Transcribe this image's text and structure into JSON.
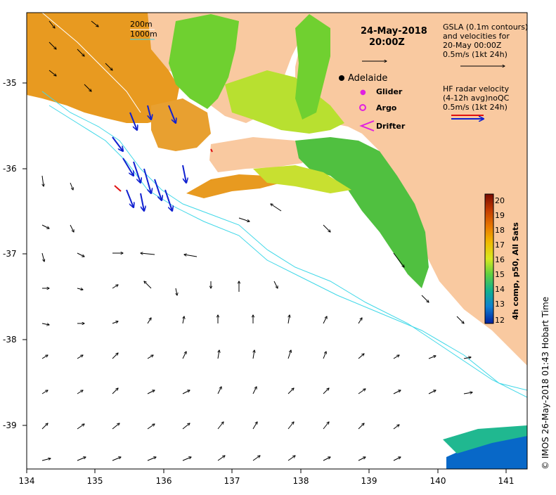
{
  "map": {
    "date_line1": "24-May-2018",
    "date_line2": "20:00Z",
    "x_ticks": [
      "134",
      "135",
      "136",
      "137",
      "138",
      "139",
      "140",
      "141"
    ],
    "y_ticks": [
      "-35",
      "-36",
      "-37",
      "-38",
      "-39"
    ],
    "contour_legend": {
      "line1": "200m",
      "line2": "1000m"
    },
    "gsla_legend": {
      "line1": "GSLA (0.1m contours)",
      "line2": "and velocities for",
      "line3": "20-May 00:00Z",
      "line4": "0.5m/s (1kt 24h)"
    },
    "hf_legend": {
      "line1": "HF radar velocity",
      "line2": "(4-12h avg)noQC",
      "line3": "0.5m/s (1kt 24h)"
    },
    "place_label": "Adelaide",
    "symbols": {
      "glider": "Glider",
      "argo": "Argo",
      "drifter": "Drifter"
    },
    "colorbar": {
      "label": "4h comp, p50, All Sats",
      "ticks": [
        "20",
        "19",
        "18",
        "17",
        "16",
        "15",
        "14",
        "13",
        "12"
      ],
      "colors": [
        "#7a0a00",
        "#c23a00",
        "#e87800",
        "#f0b800",
        "#d8e820",
        "#60d040",
        "#10b090",
        "#1080d0",
        "#0020a0"
      ]
    },
    "credit": "© IMOS 26-May-2018 01:43 Hobart Time"
  }
}
